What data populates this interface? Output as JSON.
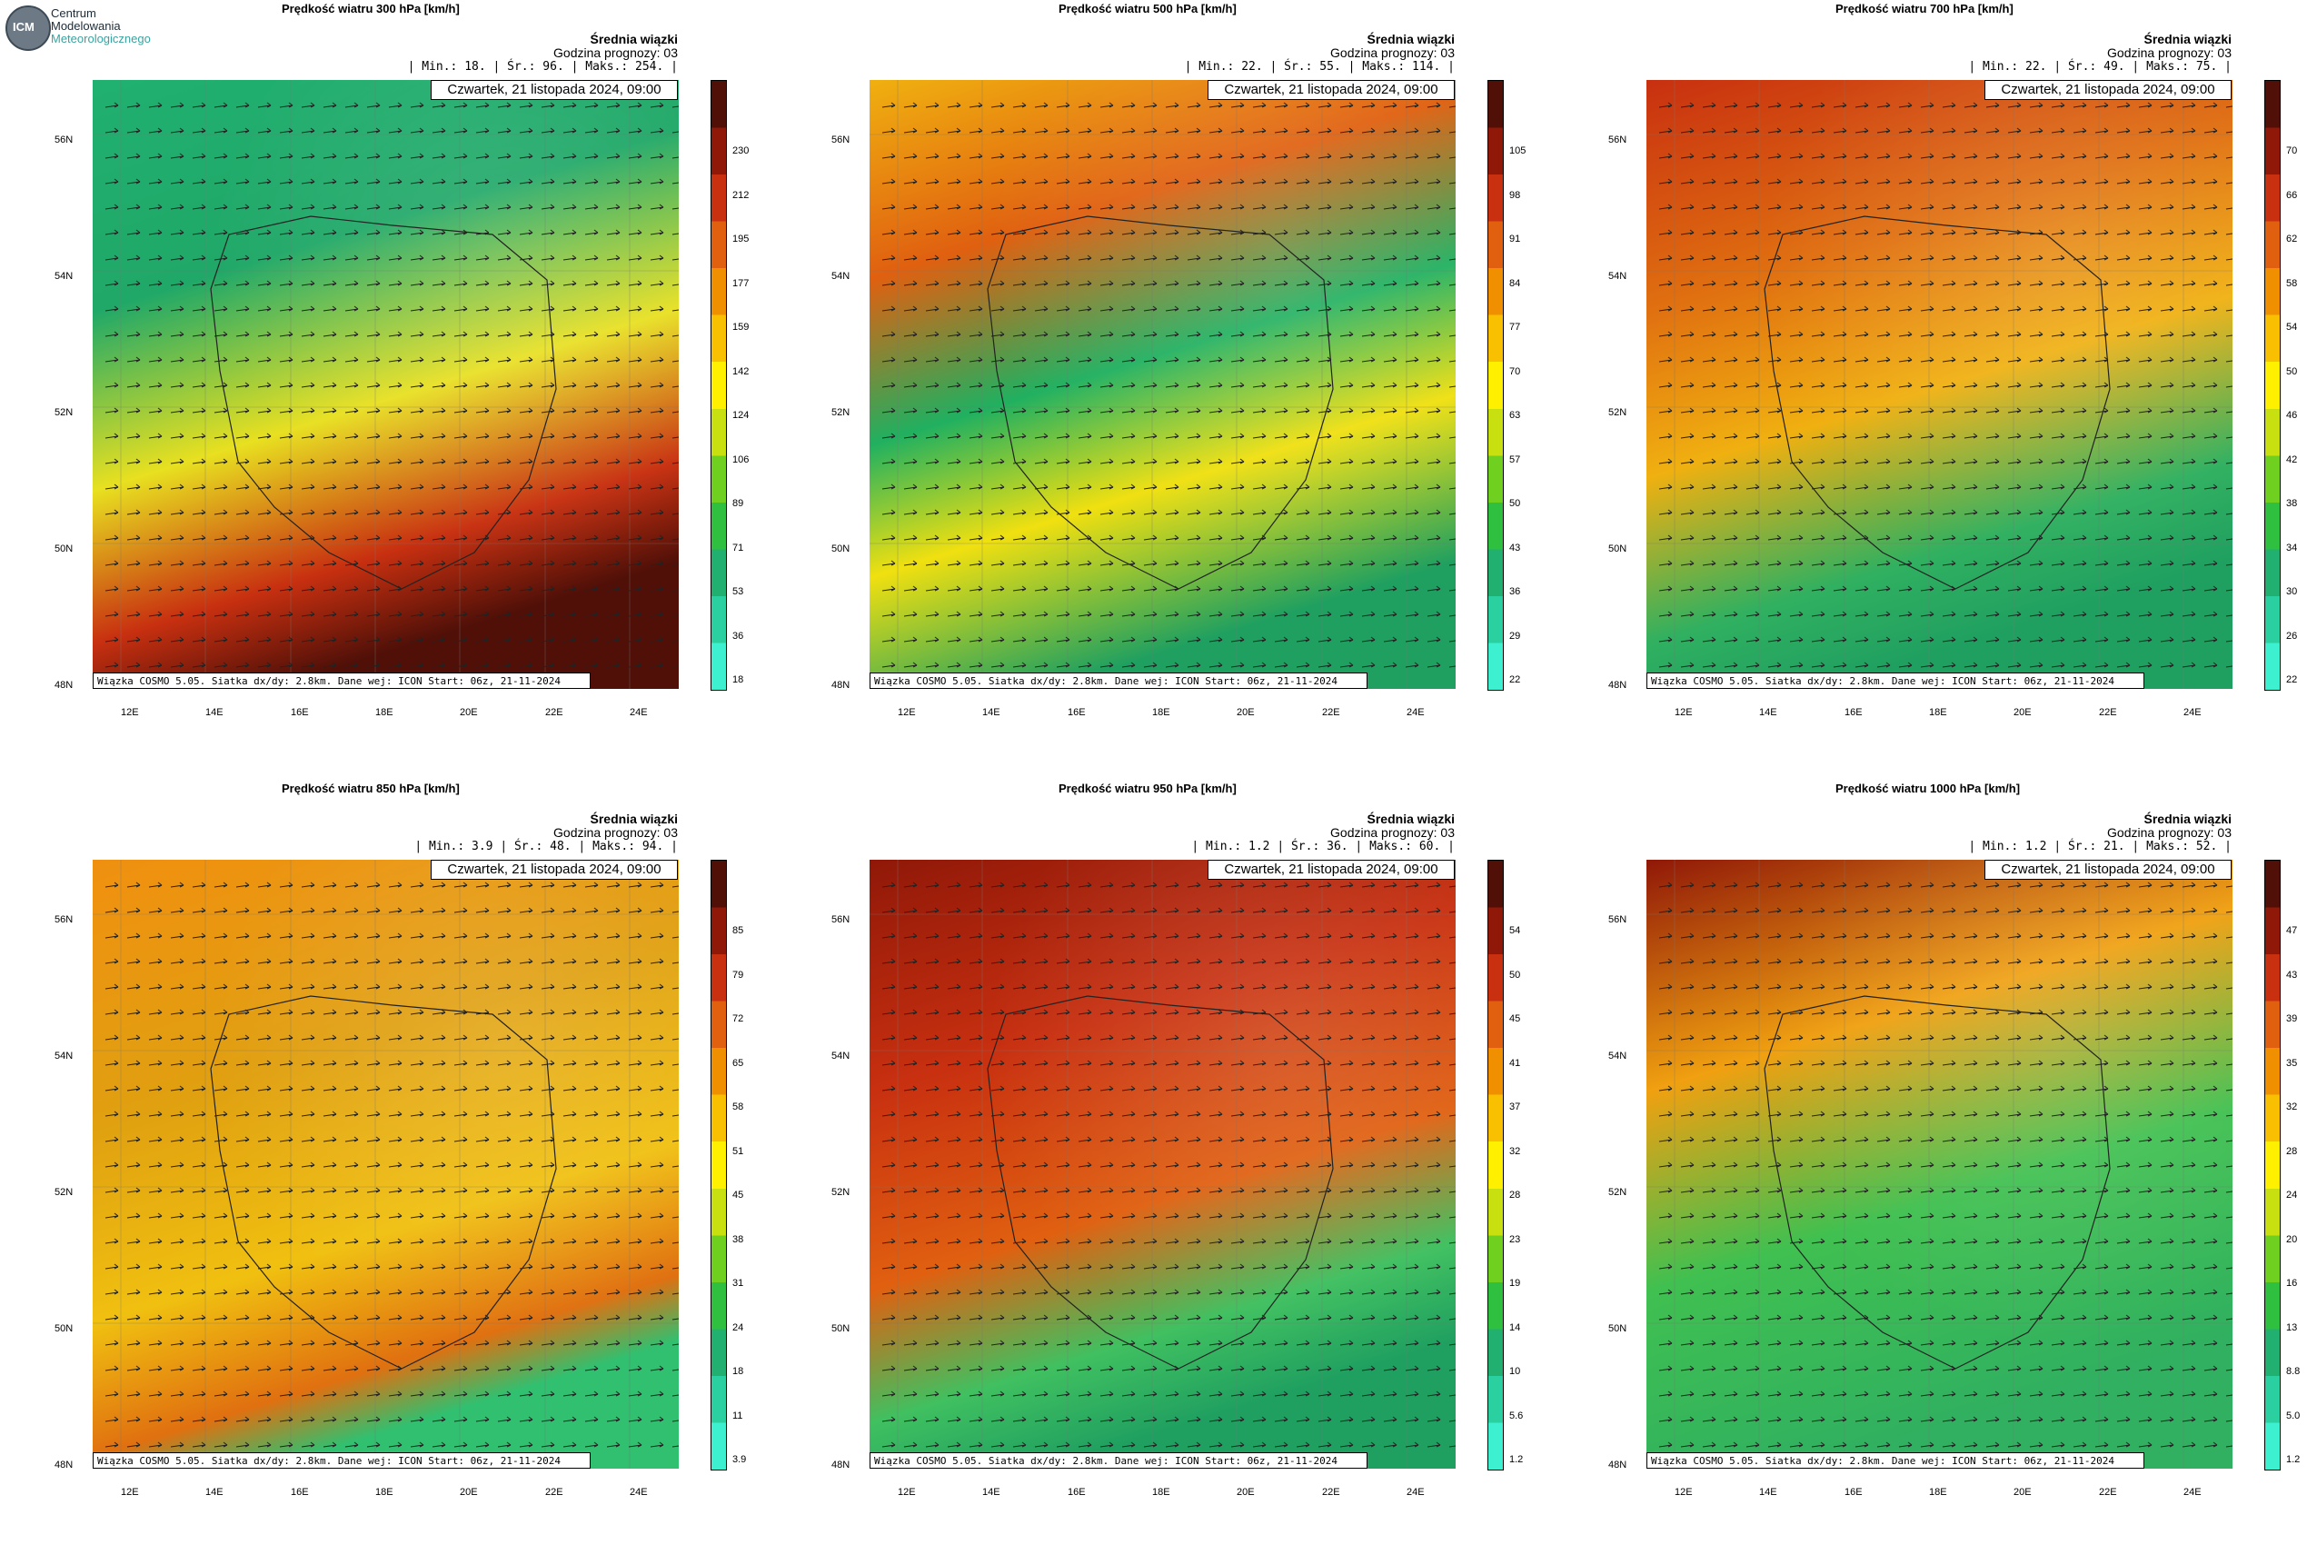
{
  "logo": {
    "badge": "ICM",
    "line1": "Centrum",
    "line2": "Modelowania",
    "line3": "Meteorologicznego"
  },
  "common": {
    "subtitle1": "Średnia wiązki",
    "subtitle2": "Godzina prognozy: 03",
    "date": "Czwartek, 21 listopada 2024, 09:00",
    "footer": "Wiązka COSMO 5.05. Siatka dx/dy: 2.8km. Dane wej: ICON Start: 06z, 21-11-2024",
    "lat_labels": [
      "56N",
      "54N",
      "52N",
      "50N",
      "48N"
    ],
    "lon_labels": [
      "12E",
      "14E",
      "16E",
      "18E",
      "20E",
      "22E",
      "24E"
    ]
  },
  "panels": [
    {
      "title": "Prędkość wiatru 300 hPa [km/h]",
      "stats": "| Min.:     18. | Śr.:     96. | Maks.:    254. |",
      "ticks": [
        "230",
        "212",
        "195",
        "177",
        "159",
        "142",
        "124",
        "106",
        "89",
        "71",
        "53",
        "36",
        "18"
      ]
    },
    {
      "title": "Prędkość wiatru 500 hPa [km/h]",
      "stats": "| Min.:     22. | Śr.:     55. | Maks.:    114. |",
      "ticks": [
        "105",
        "98",
        "91",
        "84",
        "77",
        "70",
        "63",
        "57",
        "50",
        "43",
        "36",
        "29",
        "22"
      ]
    },
    {
      "title": "Prędkość wiatru 700 hPa [km/h]",
      "stats": "| Min.:     22. | Śr.:     49. | Maks.:     75. |",
      "ticks": [
        "70",
        "66",
        "62",
        "58",
        "54",
        "50",
        "46",
        "42",
        "38",
        "34",
        "30",
        "26",
        "22"
      ]
    },
    {
      "title": "Prędkość wiatru 850 hPa [km/h]",
      "stats": "| Min.:    3.9 | Śr.:     48. | Maks.:     94. |",
      "ticks": [
        "85",
        "79",
        "72",
        "65",
        "58",
        "51",
        "45",
        "38",
        "31",
        "24",
        "18",
        "11",
        "3.9"
      ]
    },
    {
      "title": "Prędkość wiatru 950 hPa [km/h]",
      "stats": "| Min.:    1.2 | Śr.:     36. | Maks.:     60. |",
      "ticks": [
        "54",
        "50",
        "45",
        "41",
        "37",
        "32",
        "28",
        "23",
        "19",
        "14",
        "10",
        "5.6",
        "1.2"
      ]
    },
    {
      "title": "Prędkość wiatru 1000 hPa [km/h]",
      "stats": "| Min.:    1.2 | Śr.:     21. | Maks.:     52. |",
      "ticks": [
        "47",
        "43",
        "39",
        "35",
        "32",
        "28",
        "24",
        "20",
        "16",
        "13",
        "8.8",
        "5.0",
        "1.2"
      ]
    }
  ],
  "colors": {
    "colorbar": [
      "#3df0d0",
      "#2bd0a0",
      "#22b070",
      "#30c040",
      "#70d020",
      "#c8e010",
      "#fff000",
      "#f8c000",
      "#f09000",
      "#e06010",
      "#c83010",
      "#901808",
      "#501008"
    ],
    "map_bg": [
      "#10b070",
      "#f2b010",
      "#ee8a12",
      "#f0a010",
      "#e04010",
      "#e0c020"
    ]
  }
}
